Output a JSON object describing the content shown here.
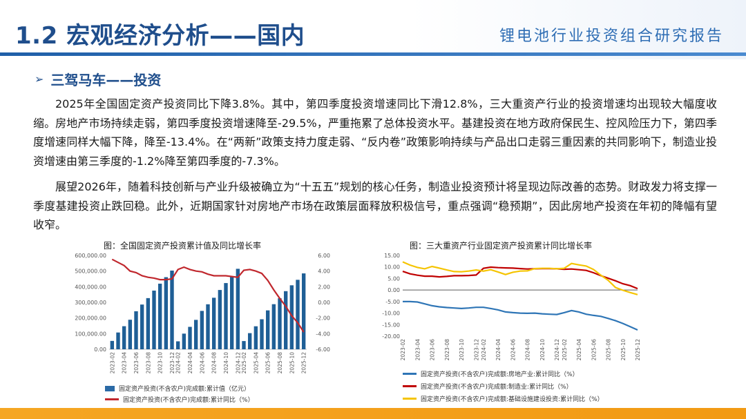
{
  "header": {
    "title": "1.2 宏观经济分析——国内",
    "subtitle": "锂电池行业投资组合研究报告"
  },
  "section": {
    "arrow": "➢",
    "title": "三驾马车——投资"
  },
  "paragraphs": {
    "p1": "2025年全国固定资产投资同比下降3.8%。其中，第四季度投资增速同比下滑12.8%，三大重资产行业的投资增速均出现较大幅度收缩。房地产市场持续走弱，第四季度投资增速降至-29.5%，严重拖累了总体投资水平。基建投资在地方政府保民生、控风险压力下，第四季度增速同样大幅下降，降至-13.4%。在“两新”政策支持力度走弱、“反内卷”政策影响持续与产品出口走弱三重因素的共同影响下，制造业投资增速由第三季度的-1.2%降至第四季度的-7.3%。",
    "p2": "展望2026年，随着科技创新与产业升级被确立为“十五五”规划的核心任务，制造业投资预计将呈现边际改善的态势。财政发力将支撑一季度基建投资止跌回稳。此外，近期国家针对房地产市场在政策层面释放积极信号，重点强调“稳预期”，因此房地产投资在年初的降幅有望收窄。"
  },
  "chart_data": [
    {
      "type": "bar",
      "title": "图：全国固定资产投资累计值及同比增长率",
      "categories": [
        "2023-02",
        "2023-03",
        "2023-04",
        "2023-05",
        "2023-06",
        "2023-07",
        "2023-08",
        "2023-09",
        "2023-10",
        "2023-11",
        "2023-12",
        "2024-02",
        "2024-03",
        "2024-04",
        "2024-05",
        "2024-06",
        "2024-07",
        "2024-08",
        "2024-09",
        "2024-10",
        "2024-11",
        "2024-12",
        "2025-02",
        "2025-03",
        "2025-04",
        "2025-05",
        "2025-06",
        "2025-07",
        "2025-08",
        "2025-09",
        "2025-10",
        "2025-11",
        "2025-12"
      ],
      "x_tick_labels": [
        "2023-02",
        "2023-04",
        "2023-06",
        "2023-08",
        "2023-10",
        "2023-12",
        "2024-02",
        "2024-04",
        "2024-06",
        "2024-08",
        "2024-10",
        "2024-12",
        "2025-02",
        "2025-04",
        "2025-06",
        "2025-08",
        "2025-10",
        "2025-12"
      ],
      "series": [
        {
          "name": "固定资产投资(不含农户)完成额:累计值（亿元）",
          "axis": "left",
          "kind": "bar",
          "color": "#1f5f96",
          "values": [
            53577,
            107282,
            147482,
            188815,
            243113,
            285898,
            327042,
            375035,
            419409,
            460814,
            503036,
            50847,
            100042,
            143401,
            188006,
            245391,
            287611,
            329385,
            378978,
            423222,
            465839,
            514374,
            52619,
            103174,
            147024,
            191947,
            248654,
            288229,
            326111,
            371535,
            408914,
            444035,
            485000
          ]
        },
        {
          "name": "固定资产投资(不含农户)完成额:累计同比（%）",
          "axis": "right",
          "kind": "line",
          "color": "#c0272d",
          "values": [
            5.5,
            5.1,
            4.7,
            4.0,
            3.8,
            3.4,
            3.2,
            3.1,
            2.9,
            2.9,
            3.0,
            4.2,
            4.5,
            4.2,
            4.0,
            3.9,
            3.6,
            3.4,
            3.4,
            3.4,
            3.3,
            3.2,
            4.1,
            4.2,
            4.0,
            3.7,
            2.8,
            1.6,
            0.5,
            -0.5,
            -1.7,
            -2.6,
            -3.8
          ]
        }
      ],
      "ylim_left": [
        0,
        600000
      ],
      "yticks_left": [
        "600,000.00",
        "500,000.00",
        "400,000.00",
        "300,000.00",
        "200,000.00",
        "100,000.00",
        "0.00"
      ],
      "ylim_right": [
        -6,
        6
      ],
      "yticks_right": [
        "6.00",
        "4.00",
        "2.00",
        "0.00",
        "-2.00",
        "-4.00",
        "-6.00"
      ],
      "legend_placement": "bottom"
    },
    {
      "type": "line",
      "title": "图：三大重资产行业固定资产投资累计同比增长率",
      "categories": [
        "2023-02",
        "2023-03",
        "2023-04",
        "2023-05",
        "2023-06",
        "2023-07",
        "2023-08",
        "2023-09",
        "2023-10",
        "2023-11",
        "2023-12",
        "2024-02",
        "2024-03",
        "2024-04",
        "2024-05",
        "2024-06",
        "2024-07",
        "2024-08",
        "2024-09",
        "2024-10",
        "2024-11",
        "2024-12",
        "2025-02",
        "2025-03",
        "2025-04",
        "2025-05",
        "2025-06",
        "2025-07",
        "2025-08",
        "2025-09",
        "2025-10",
        "2025-11",
        "2025-12"
      ],
      "x_tick_labels": [
        "2023-02",
        "2023-04",
        "2023-06",
        "2023-08",
        "2023-10",
        "2023-12",
        "2024-02",
        "2024-04",
        "2024-06",
        "2024-08",
        "2024-10",
        "2024-12",
        "2025-02",
        "2025-04",
        "2025-06",
        "2025-08",
        "2025-10",
        "2025-12"
      ],
      "series": [
        {
          "name": "固定资产投资(不含农户)完成额:房地产业:累计同比（%）",
          "color": "#2e75b6",
          "values": [
            -5.0,
            -5.0,
            -5.2,
            -6.0,
            -6.8,
            -7.3,
            -7.6,
            -7.8,
            -8.0,
            -7.8,
            -7.5,
            -7.5,
            -8.0,
            -8.6,
            -9.5,
            -9.8,
            -10.0,
            -10.1,
            -10.0,
            -10.3,
            -10.5,
            -10.6,
            -9.8,
            -8.9,
            -9.5,
            -10.5,
            -11.0,
            -11.4,
            -12.3,
            -13.3,
            -14.5,
            -15.9,
            -17.3
          ]
        },
        {
          "name": "固定资产投资(不含农户)完成额:制造业:累计同比（%）",
          "color": "#c00000",
          "values": [
            8.1,
            7.0,
            6.4,
            6.0,
            6.0,
            5.7,
            5.9,
            6.2,
            6.2,
            6.3,
            6.5,
            9.4,
            9.9,
            9.7,
            9.6,
            9.5,
            9.3,
            9.1,
            9.2,
            9.3,
            9.3,
            9.2,
            9.0,
            9.1,
            8.8,
            8.5,
            7.5,
            6.2,
            5.1,
            4.0,
            2.7,
            1.9,
            0.6
          ]
        },
        {
          "name": "固定资产投资(不含农户)完成额:基础设施建设投资:累计同比（%）",
          "color": "#f5c400",
          "values": [
            12.2,
            10.8,
            9.8,
            9.2,
            10.2,
            9.5,
            8.7,
            8.0,
            7.9,
            8.2,
            8.7,
            8.2,
            8.8,
            7.8,
            6.7,
            7.7,
            8.2,
            8.3,
            9.3,
            9.4,
            9.4,
            9.2,
            9.4,
            11.5,
            10.9,
            10.4,
            8.9,
            6.4,
            4.2,
            1.1,
            -0.1,
            -1.1,
            -2.0
          ]
        }
      ],
      "ylim": [
        -20,
        15
      ],
      "yticks": [
        "15.00",
        "10.00",
        "5.00",
        "0.00",
        "-5.00",
        "-10.00",
        "-15.00",
        "-20.00"
      ],
      "legend_placement": "bottom"
    }
  ]
}
